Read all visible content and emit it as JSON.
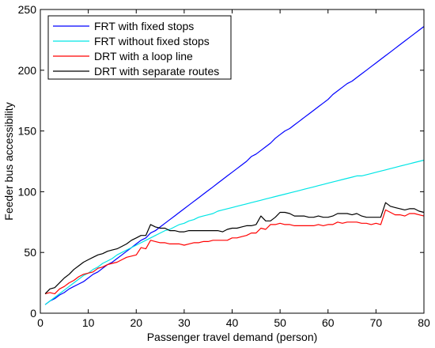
{
  "chart_data": {
    "type": "line",
    "xlabel": "Passenger travel demand (person)",
    "ylabel": "Feeder bus accessibility",
    "xlim": [
      0,
      80
    ],
    "ylim": [
      0,
      250
    ],
    "xticks": [
      0,
      10,
      20,
      30,
      40,
      50,
      60,
      70,
      80
    ],
    "yticks": [
      0,
      50,
      100,
      150,
      200,
      250
    ],
    "grid": false,
    "legend_position": "top-left",
    "x": [
      1,
      2,
      3,
      4,
      5,
      6,
      7,
      8,
      9,
      10,
      11,
      12,
      13,
      14,
      15,
      16,
      17,
      18,
      19,
      20,
      21,
      22,
      23,
      24,
      25,
      26,
      27,
      28,
      29,
      30,
      31,
      32,
      33,
      34,
      35,
      36,
      37,
      38,
      39,
      40,
      41,
      42,
      43,
      44,
      45,
      46,
      47,
      48,
      49,
      50,
      51,
      52,
      53,
      54,
      55,
      56,
      57,
      58,
      59,
      60,
      61,
      62,
      63,
      64,
      65,
      66,
      67,
      68,
      69,
      70,
      71,
      72,
      73,
      74,
      75,
      76,
      77,
      78,
      79,
      80
    ],
    "series": [
      {
        "name": "FRT with fixed stops",
        "color": "#0000ff",
        "values": [
          7,
          10,
          12,
          15,
          17,
          20,
          22,
          24,
          26,
          29,
          32,
          34,
          37,
          40,
          42,
          45,
          48,
          51,
          54,
          57,
          60,
          62,
          66,
          68,
          71,
          74,
          77,
          80,
          83,
          86,
          89,
          92,
          95,
          98,
          101,
          104,
          107,
          110,
          113,
          116,
          119,
          122,
          125,
          129,
          131,
          134,
          137,
          140,
          144,
          147,
          150,
          152,
          155,
          158,
          161,
          164,
          167,
          170,
          173,
          176,
          180,
          183,
          186,
          189,
          191,
          194,
          197,
          200,
          203,
          206,
          209,
          212,
          215,
          218,
          221,
          224,
          227,
          230,
          233,
          236
        ]
      },
      {
        "name": "FRT without fixed stops",
        "color": "#00e5e5",
        "values": [
          7,
          10,
          13,
          16,
          19,
          22,
          25,
          28,
          31,
          33,
          36,
          38,
          41,
          43,
          45,
          48,
          50,
          52,
          54,
          56,
          58,
          60,
          62,
          64,
          66,
          68,
          69,
          71,
          73,
          74,
          76,
          77,
          79,
          80,
          81,
          82,
          84,
          85,
          86,
          87,
          88,
          89,
          90,
          91,
          92,
          93,
          94,
          95,
          96,
          97,
          98,
          99,
          100,
          101,
          102,
          103,
          104,
          105,
          106,
          107,
          108,
          109,
          110,
          111,
          112,
          113,
          113,
          114,
          115,
          116,
          117,
          118,
          119,
          120,
          121,
          122,
          123,
          124,
          125,
          126
        ]
      },
      {
        "name": "DRT with a loop line",
        "color": "#ff0000",
        "values": [
          16,
          17,
          16,
          20,
          22,
          25,
          27,
          30,
          32,
          33,
          34,
          37,
          38,
          40,
          41,
          42,
          44,
          46,
          47,
          48,
          54,
          53,
          60,
          59,
          58,
          58,
          57,
          57,
          57,
          56,
          57,
          58,
          58,
          59,
          59,
          60,
          60,
          60,
          60,
          62,
          62,
          63,
          64,
          66,
          66,
          70,
          69,
          73,
          73,
          74,
          73,
          73,
          72,
          72,
          72,
          72,
          72,
          73,
          72,
          73,
          73,
          75,
          74,
          75,
          75,
          75,
          74,
          74,
          73,
          74,
          73,
          85,
          83,
          81,
          81,
          80,
          82,
          82,
          81,
          80
        ]
      },
      {
        "name": "DRT with separate routes",
        "color": "#000000",
        "values": [
          16,
          20,
          21,
          25,
          29,
          32,
          36,
          39,
          42,
          44,
          46,
          48,
          49,
          51,
          52,
          53,
          55,
          57,
          60,
          62,
          64,
          64,
          73,
          71,
          70,
          70,
          68,
          68,
          67,
          67,
          68,
          68,
          68,
          68,
          68,
          68,
          68,
          67,
          69,
          70,
          70,
          71,
          72,
          72,
          73,
          80,
          76,
          76,
          79,
          83,
          83,
          82,
          80,
          80,
          80,
          79,
          79,
          80,
          79,
          79,
          80,
          82,
          82,
          82,
          81,
          82,
          80,
          79,
          79,
          79,
          79,
          91,
          88,
          87,
          86,
          85,
          86,
          86,
          84,
          83
        ]
      }
    ]
  }
}
